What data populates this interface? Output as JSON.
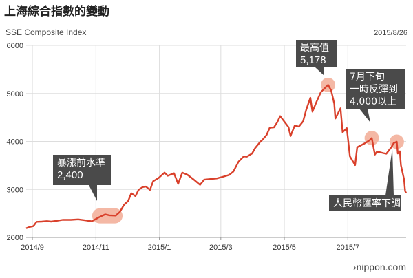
{
  "header": {
    "title": "上海綜合指數的變動",
    "subtitle": "SSE Composite Index",
    "date": "2015/8/26"
  },
  "watermark": "›nippon.com",
  "colors": {
    "line": "#d9402b",
    "highlight": "#f4b8a5",
    "callout_bg": "#4a4a4a",
    "grid": "#dddddd"
  },
  "chart_data": {
    "type": "line",
    "title": "上海綜合指數的變動",
    "subtitle": "SSE Composite Index",
    "ylim": [
      2000,
      6000
    ],
    "xlim": [
      "2014-08-26",
      "2015-08-26"
    ],
    "yticks": [
      2000,
      3000,
      4000,
      5000,
      6000
    ],
    "ytick_labels": [
      "2000",
      "3000",
      "4000",
      "5000",
      "6000"
    ],
    "xticks": [
      "2014-09-01",
      "2014-11-01",
      "2015-01-01",
      "2015-03-01",
      "2015-05-01",
      "2015-07-01"
    ],
    "xtick_labels": [
      "2014/9",
      "2014/11",
      "2015/1",
      "2015/3",
      "2015/5",
      "2015/7"
    ],
    "series": [
      {
        "points": [
          [
            "2014-08-26",
            2190
          ],
          [
            "2014-08-29",
            2215
          ],
          [
            "2014-09-02",
            2235
          ],
          [
            "2014-09-05",
            2325
          ],
          [
            "2014-09-10",
            2330
          ],
          [
            "2014-09-15",
            2340
          ],
          [
            "2014-09-19",
            2330
          ],
          [
            "2014-09-24",
            2345
          ],
          [
            "2014-09-30",
            2365
          ],
          [
            "2014-10-08",
            2365
          ],
          [
            "2014-10-15",
            2375
          ],
          [
            "2014-10-22",
            2355
          ],
          [
            "2014-10-28",
            2335
          ],
          [
            "2014-11-04",
            2420
          ],
          [
            "2014-11-10",
            2480
          ],
          [
            "2014-11-14",
            2460
          ],
          [
            "2014-11-20",
            2455
          ],
          [
            "2014-11-24",
            2530
          ],
          [
            "2014-11-28",
            2680
          ],
          [
            "2014-12-02",
            2760
          ],
          [
            "2014-12-05",
            2920
          ],
          [
            "2014-12-09",
            2860
          ],
          [
            "2014-12-12",
            2990
          ],
          [
            "2014-12-16",
            3050
          ],
          [
            "2014-12-19",
            3060
          ],
          [
            "2014-12-23",
            2990
          ],
          [
            "2014-12-26",
            3170
          ],
          [
            "2014-12-31",
            3235
          ],
          [
            "2015-01-06",
            3350
          ],
          [
            "2015-01-09",
            3285
          ],
          [
            "2015-01-15",
            3336
          ],
          [
            "2015-01-19",
            3116
          ],
          [
            "2015-01-23",
            3351
          ],
          [
            "2015-01-28",
            3305
          ],
          [
            "2015-02-03",
            3205
          ],
          [
            "2015-02-09",
            3095
          ],
          [
            "2015-02-13",
            3203
          ],
          [
            "2015-02-25",
            3228
          ],
          [
            "2015-03-03",
            3263
          ],
          [
            "2015-03-09",
            3302
          ],
          [
            "2015-03-13",
            3372
          ],
          [
            "2015-03-18",
            3577
          ],
          [
            "2015-03-23",
            3687
          ],
          [
            "2015-03-26",
            3682
          ],
          [
            "2015-03-31",
            3748
          ],
          [
            "2015-04-03",
            3863
          ],
          [
            "2015-04-08",
            3995
          ],
          [
            "2015-04-10",
            4034
          ],
          [
            "2015-04-14",
            4135
          ],
          [
            "2015-04-17",
            4287
          ],
          [
            "2015-04-21",
            4293
          ],
          [
            "2015-04-24",
            4393
          ],
          [
            "2015-04-27",
            4527
          ],
          [
            "2015-04-30",
            4441
          ],
          [
            "2015-05-05",
            4298
          ],
          [
            "2015-05-07",
            4112
          ],
          [
            "2015-05-11",
            4333
          ],
          [
            "2015-05-15",
            4308
          ],
          [
            "2015-05-19",
            4417
          ],
          [
            "2015-05-22",
            4657
          ],
          [
            "2015-05-26",
            4910
          ],
          [
            "2015-05-28",
            4620
          ],
          [
            "2015-06-01",
            4828
          ],
          [
            "2015-06-05",
            5023
          ],
          [
            "2015-06-09",
            5113
          ],
          [
            "2015-06-12",
            5178
          ],
          [
            "2015-06-15",
            5062
          ],
          [
            "2015-06-18",
            4786
          ],
          [
            "2015-06-19",
            4478
          ],
          [
            "2015-06-24",
            4690
          ],
          [
            "2015-06-26",
            4192
          ],
          [
            "2015-06-30",
            4277
          ],
          [
            "2015-07-03",
            3687
          ],
          [
            "2015-07-08",
            3507
          ],
          [
            "2015-07-10",
            3878
          ],
          [
            "2015-07-14",
            3924
          ],
          [
            "2015-07-17",
            3957
          ],
          [
            "2015-07-22",
            4026
          ],
          [
            "2015-07-24",
            4070
          ],
          [
            "2015-07-27",
            3725
          ],
          [
            "2015-07-29",
            3789
          ],
          [
            "2015-08-04",
            3756
          ],
          [
            "2015-08-07",
            3744
          ],
          [
            "2015-08-12",
            3886
          ],
          [
            "2015-08-14",
            3965
          ],
          [
            "2015-08-17",
            3993
          ],
          [
            "2015-08-18",
            3748
          ],
          [
            "2015-08-20",
            3794
          ],
          [
            "2015-08-21",
            3507
          ],
          [
            "2015-08-24",
            3209
          ],
          [
            "2015-08-25",
            2965
          ],
          [
            "2015-08-26",
            2927
          ]
        ]
      }
    ],
    "highlights": [
      {
        "start": "2014-11-04",
        "end": "2014-11-20",
        "value": 2450
      },
      {
        "date": "2015-06-12",
        "value": 5178
      },
      {
        "date": "2015-07-24",
        "value": 4070
      },
      {
        "date": "2015-08-17",
        "value": 3993
      }
    ],
    "annotations": [
      {
        "lines": [
          "暴漲前水準",
          "2,400"
        ]
      },
      {
        "lines": [
          "最高值",
          "5,178"
        ]
      },
      {
        "lines": [
          "7月下旬",
          "一時反彈到",
          "4,000以上"
        ]
      },
      {
        "lines": [
          "人民幣匯率下調"
        ]
      }
    ]
  }
}
